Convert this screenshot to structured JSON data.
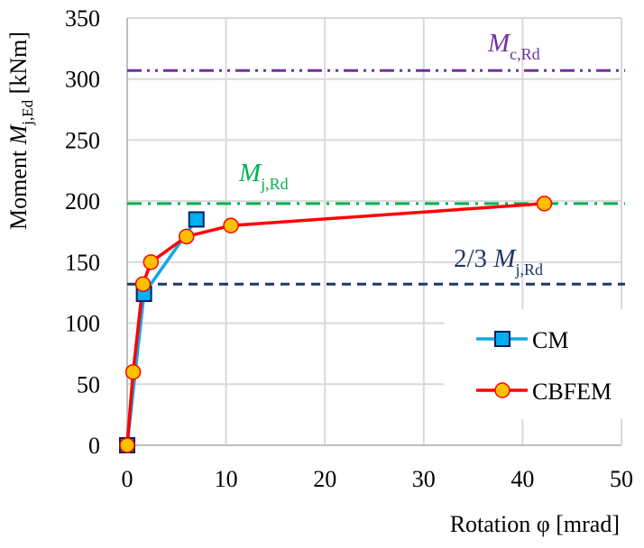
{
  "chart_data": {
    "type": "line",
    "title": "",
    "xlabel": "Rotation φ [mrad]",
    "ylabel_parts": {
      "pre": "Moment ",
      "sym": "M",
      "sub": "j,Ed",
      "post": " [kNm]"
    },
    "xlim": [
      0,
      50
    ],
    "ylim": [
      0,
      350
    ],
    "xticks": [
      0,
      10,
      20,
      30,
      40,
      50
    ],
    "yticks": [
      0,
      50,
      100,
      150,
      200,
      250,
      300,
      350
    ],
    "grid": true,
    "legend_position": "bottom-right",
    "series": [
      {
        "name": "CM",
        "color": "#12A9E8",
        "marker": "square",
        "marker_fill": "#00B0F0",
        "marker_edge": "#002060",
        "x": [
          0,
          1.7,
          7.0
        ],
        "y": [
          0,
          124,
          185
        ]
      },
      {
        "name": "CBFEM",
        "color": "#FF0000",
        "marker": "circle",
        "marker_fill": "#FFC000",
        "marker_edge": "#FF0000",
        "x": [
          0,
          0.6,
          1.6,
          2.4,
          6.0,
          10.5,
          42.2
        ],
        "y": [
          0,
          60,
          132,
          150,
          171,
          180,
          198
        ]
      }
    ],
    "reference_lines": [
      {
        "name": "Mc,Rd",
        "value": 307,
        "color": "#7030A0",
        "style": "dash-dot-dot",
        "label_sym": "M",
        "label_sub": "c,Rd"
      },
      {
        "name": "Mj,Rd",
        "value": 198,
        "color": "#00B050",
        "style": "dash-dot",
        "label_sym": "M",
        "label_sub": "j,Rd"
      },
      {
        "name": "2/3 Mj,Rd",
        "value": 132,
        "color": "#1F3864",
        "style": "dash",
        "label_pre": "2/3 ",
        "label_sym": "M",
        "label_sub": "j,Rd"
      }
    ]
  }
}
